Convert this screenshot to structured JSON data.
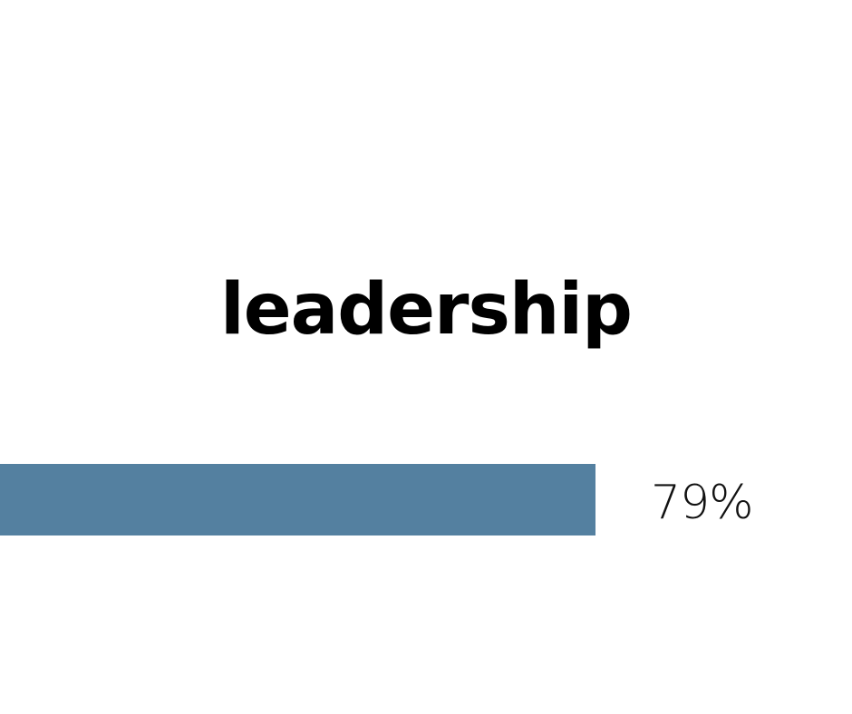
{
  "chart_data": {
    "type": "bar",
    "title": "leadership",
    "categories": [
      "leadership"
    ],
    "values": [
      79
    ],
    "value_label": "79%",
    "unit": "%",
    "ylim": [
      0,
      100
    ],
    "orientation": "horizontal",
    "grid": false,
    "bar_color": "#5480a0",
    "background_color": "#ffffff"
  }
}
